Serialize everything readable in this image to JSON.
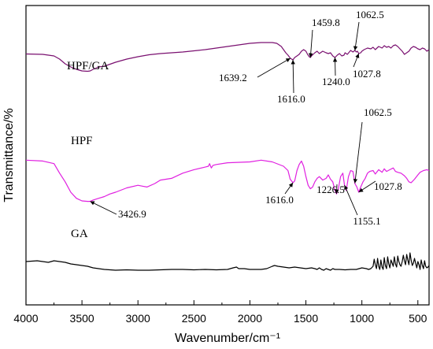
{
  "chart_data": {
    "type": "line",
    "xlabel": "Wavenumber/cm⁻¹",
    "ylabel": "Transmittance/%",
    "xlim": [
      4000,
      400
    ],
    "x_reversed": true,
    "x_ticks": [
      "4000",
      "3500",
      "3000",
      "2500",
      "2000",
      "1500",
      "1000",
      "500"
    ],
    "y_ticks_shown": false,
    "grid": false,
    "colors": {
      "HPF/GA": "#7a1070",
      "HPF": "#e020e0",
      "GA": "#000000"
    },
    "series": [
      {
        "name": "HPF/GA",
        "x": [
          4000,
          3850,
          3750,
          3700,
          3650,
          3600,
          3550,
          3500,
          3450,
          3426,
          3400,
          3350,
          3300,
          3200,
          3100,
          3000,
          2900,
          2800,
          2600,
          2400,
          2300,
          2200,
          2000,
          1900,
          1800,
          1760,
          1720,
          1680,
          1660,
          1639,
          1616,
          1600,
          1580,
          1560,
          1540,
          1520,
          1500,
          1485,
          1470,
          1460,
          1450,
          1420,
          1400,
          1380,
          1350,
          1320,
          1300,
          1280,
          1260,
          1240,
          1220,
          1200,
          1180,
          1160,
          1150,
          1130,
          1100,
          1080,
          1062,
          1050,
          1040,
          1028,
          1010,
          1000,
          980,
          950,
          920,
          900,
          880,
          850,
          820,
          800,
          780,
          760,
          740,
          720,
          700,
          680,
          660,
          640,
          620,
          600,
          580,
          560,
          540,
          520,
          500,
          480,
          460,
          440,
          420,
          400
        ],
        "y": [
          76.5,
          76,
          74,
          70,
          64,
          60,
          57,
          55,
          54.5,
          55,
          57,
          60,
          61,
          66,
          70,
          73,
          75.5,
          77,
          79,
          82,
          84,
          86,
          90,
          91,
          91,
          90,
          86,
          78,
          75,
          71,
          69,
          72,
          74,
          76,
          80,
          82,
          80,
          76,
          73,
          72,
          74,
          78,
          80,
          77,
          80,
          78,
          77,
          78,
          74,
          72,
          75,
          77,
          74,
          75,
          78,
          76,
          81,
          79,
          81,
          79,
          80,
          77,
          78,
          80,
          82,
          84,
          83,
          85,
          82,
          86,
          84,
          87,
          85,
          86,
          84,
          87,
          88,
          86,
          83,
          80,
          76,
          78,
          80,
          84,
          86,
          85,
          83,
          82,
          84,
          83,
          80,
          82
        ]
      },
      {
        "name": "HPF",
        "x": [
          4000,
          3850,
          3750,
          3700,
          3650,
          3600,
          3550,
          3500,
          3450,
          3426,
          3400,
          3350,
          3300,
          3250,
          3200,
          3100,
          3000,
          2960,
          2920,
          2850,
          2800,
          2700,
          2600,
          2500,
          2400,
          2370,
          2360,
          2345,
          2330,
          2300,
          2200,
          2000,
          1900,
          1800,
          1700,
          1660,
          1640,
          1616,
          1600,
          1580,
          1560,
          1540,
          1520,
          1500,
          1480,
          1460,
          1440,
          1420,
          1400,
          1380,
          1350,
          1320,
          1300,
          1280,
          1260,
          1240,
          1226,
          1210,
          1190,
          1170,
          1155,
          1140,
          1120,
          1100,
          1080,
          1062,
          1045,
          1028,
          1010,
          990,
          970,
          950,
          930,
          900,
          880,
          850,
          820,
          800,
          780,
          750,
          720,
          700,
          680,
          650,
          620,
          600,
          580,
          560,
          530,
          500,
          480,
          450,
          420,
          400
        ],
        "y": [
          67,
          66,
          63,
          52,
          42,
          30,
          23,
          20,
          19.5,
          19.5,
          21,
          23,
          25,
          28,
          30,
          35,
          38,
          37,
          36,
          40,
          44,
          46,
          52,
          56,
          59,
          60,
          63,
          58,
          61,
          62,
          64,
          65,
          67,
          65,
          60,
          55,
          45,
          41,
          43,
          55,
          62,
          66,
          60,
          48,
          38,
          34,
          36,
          42,
          46,
          48,
          44,
          46,
          50,
          45,
          42,
          32,
          28,
          34,
          48,
          52,
          38,
          32,
          48,
          55,
          54,
          40,
          36,
          30,
          36,
          42,
          46,
          52,
          54,
          55,
          51,
          56,
          53,
          57,
          54,
          56,
          58,
          54,
          53,
          52,
          49,
          46,
          42,
          41,
          45,
          50,
          53,
          55,
          56,
          55
        ]
      },
      {
        "name": "GA",
        "x": [
          4000,
          3900,
          3850,
          3800,
          3750,
          3700,
          3650,
          3600,
          3550,
          3500,
          3450,
          3400,
          3350,
          3300,
          3200,
          3100,
          3000,
          2900,
          2800,
          2700,
          2600,
          2500,
          2400,
          2300,
          2200,
          2150,
          2120,
          2100,
          2050,
          2000,
          1900,
          1850,
          1800,
          1780,
          1750,
          1700,
          1650,
          1600,
          1550,
          1500,
          1450,
          1420,
          1400,
          1380,
          1360,
          1340,
          1320,
          1300,
          1280,
          1260,
          1240,
          1200,
          1150,
          1100,
          1050,
          1000,
          960,
          940,
          920,
          900,
          890,
          880,
          870,
          860,
          850,
          840,
          830,
          820,
          810,
          800,
          790,
          780,
          770,
          760,
          750,
          740,
          730,
          720,
          710,
          700,
          690,
          680,
          670,
          660,
          650,
          640,
          630,
          620,
          610,
          600,
          590,
          580,
          570,
          560,
          550,
          540,
          530,
          520,
          510,
          500,
          490,
          480,
          470,
          460,
          450,
          440,
          430,
          420,
          410,
          400
        ],
        "y": [
          -12,
          -11,
          -12,
          -13,
          -11,
          -12,
          -13,
          -15,
          -16,
          -17,
          -18,
          -20,
          -21,
          -22,
          -23,
          -22.5,
          -23,
          -23,
          -22.5,
          -22,
          -22,
          -22.5,
          -22,
          -22.5,
          -22,
          -20,
          -19,
          -21,
          -21,
          -22,
          -22,
          -21,
          -18,
          -17,
          -18,
          -19,
          -20,
          -19,
          -20,
          -21,
          -20,
          -21,
          -22,
          -20,
          -22,
          -23,
          -21,
          -22,
          -23,
          -21,
          -22,
          -22,
          -22.5,
          -22,
          -22,
          -20,
          -21,
          -22,
          -21,
          -18,
          -9,
          -16,
          -21,
          -8,
          -18,
          -22,
          -10,
          -19,
          -22,
          -7,
          -17,
          -21,
          -6,
          -15,
          -20,
          -10,
          -14,
          -18,
          -6,
          -15,
          -19,
          -5,
          -12,
          -16,
          -18,
          -12,
          -4,
          -11,
          -16,
          -3,
          -10,
          -16,
          -1,
          -10,
          -17,
          -14,
          -8,
          -14,
          -20,
          -12,
          -16,
          -22,
          -10,
          -17,
          -21,
          -11,
          -18,
          -20,
          -19,
          -17
        ]
      }
    ],
    "annotations": [
      {
        "text": "3426.9",
        "series": "HPF",
        "x": 3426.9
      },
      {
        "text": "1616.0",
        "series": "HPF",
        "x": 1616.0
      },
      {
        "text": "1226.5",
        "series": "HPF",
        "x": 1226.5
      },
      {
        "text": "1155.1",
        "series": "HPF",
        "x": 1155.1
      },
      {
        "text": "1062.5",
        "series": "HPF",
        "x": 1062.5
      },
      {
        "text": "1027.8",
        "series": "HPF",
        "x": 1027.8
      },
      {
        "text": "1639.2",
        "series": "HPF/GA",
        "x": 1639.2
      },
      {
        "text": "1616.0",
        "series": "HPF/GA",
        "x": 1616.0
      },
      {
        "text": "1459.8",
        "series": "HPF/GA",
        "x": 1459.8
      },
      {
        "text": "1240.0",
        "series": "HPF/GA",
        "x": 1240.0
      },
      {
        "text": "1062.5",
        "series": "HPF/GA",
        "x": 1062.5
      },
      {
        "text": "1027.8",
        "series": "HPF/GA",
        "x": 1027.8
      }
    ]
  }
}
